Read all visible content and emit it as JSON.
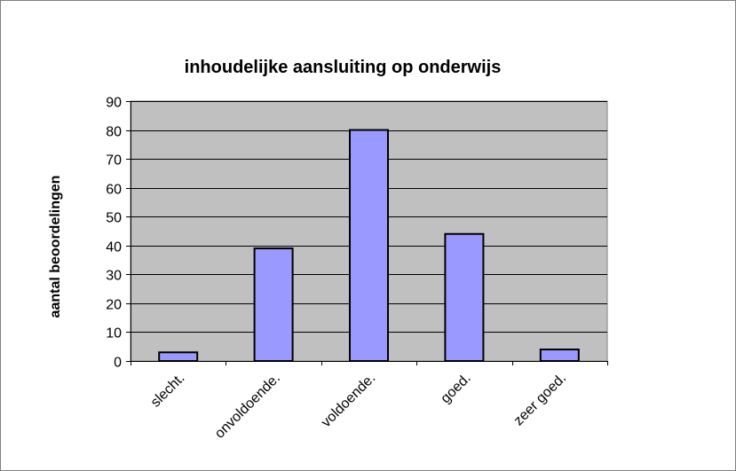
{
  "chart_data": {
    "type": "bar",
    "title": "inhoudelijke aansluiting op onderwijs",
    "xlabel": "",
    "ylabel": "aantal beoordelingen",
    "categories": [
      "slecht.",
      "onvoldoende.",
      "voldoende.",
      "goed.",
      "zeer goed."
    ],
    "values": [
      3,
      39,
      80,
      44,
      4
    ],
    "ylim": [
      0,
      90
    ],
    "yticks": [
      0,
      10,
      20,
      30,
      40,
      50,
      60,
      70,
      80,
      90
    ],
    "grid": true,
    "legend": "none",
    "colors": {
      "plot_background": "#c0c0c0",
      "bar_fill": "#9999ff",
      "bar_stroke": "#000000",
      "grid": "#000000",
      "frame": "#808080"
    }
  }
}
